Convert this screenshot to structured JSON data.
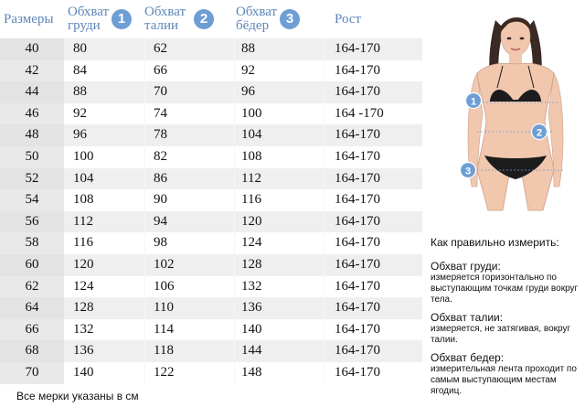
{
  "header": {
    "sizes": "Размеры",
    "chest": [
      "Обхват",
      "груди"
    ],
    "waist": [
      "Обхват",
      "талии"
    ],
    "hips": [
      "Обхват",
      "бёдер"
    ],
    "height": "Рост",
    "markers": [
      "1",
      "2",
      "3"
    ]
  },
  "rows": [
    {
      "size": "40",
      "chest": "80",
      "waist": "62",
      "hips": "88",
      "height": "164-170"
    },
    {
      "size": "42",
      "chest": "84",
      "waist": "66",
      "hips": "92",
      "height": "164-170"
    },
    {
      "size": "44",
      "chest": "88",
      "waist": "70",
      "hips": "96",
      "height": "164-170"
    },
    {
      "size": "46",
      "chest": "92",
      "waist": "74",
      "hips": "100",
      "height": "164 -170"
    },
    {
      "size": "48",
      "chest": "96",
      "waist": "78",
      "hips": "104",
      "height": "164-170"
    },
    {
      "size": "50",
      "chest": "100",
      "waist": "82",
      "hips": "108",
      "height": "164-170"
    },
    {
      "size": "52",
      "chest": "104",
      "waist": "86",
      "hips": "112",
      "height": "164-170"
    },
    {
      "size": "54",
      "chest": "108",
      "waist": "90",
      "hips": "116",
      "height": "164-170"
    },
    {
      "size": "56",
      "chest": "112",
      "waist": "94",
      "hips": "120",
      "height": "164-170"
    },
    {
      "size": "58",
      "chest": "116",
      "waist": "98",
      "hips": "124",
      "height": "164-170"
    },
    {
      "size": "60",
      "chest": "120",
      "waist": "102",
      "hips": "128",
      "height": "164-170"
    },
    {
      "size": "62",
      "chest": "124",
      "waist": "106",
      "hips": "132",
      "height": "164-170"
    },
    {
      "size": "64",
      "chest": "128",
      "waist": "110",
      "hips": "136",
      "height": "164-170"
    },
    {
      "size": "66",
      "chest": "132",
      "waist": "114",
      "hips": "140",
      "height": "164-170"
    },
    {
      "size": "68",
      "chest": "136",
      "waist": "118",
      "hips": "144",
      "height": "164-170"
    },
    {
      "size": "70",
      "chest": "140",
      "waist": "122",
      "hips": "148",
      "height": "164-170"
    }
  ],
  "footnote": "Все мерки указаны в см",
  "instructions": {
    "heading": "Как правильно измерить:",
    "chest_title": "Обхват груди:",
    "chest_desc": "измеряется горизонтально по выступающим точкам груди вокруг тела.",
    "waist_title": "Обхват талии:",
    "waist_desc": "измеряется, не затягивая, вокруг талии.",
    "hips_title": "Обхват бедер:",
    "hips_desc": "измерительная лента проходит по самым выступающим местам ягодиц."
  },
  "figure_markers": [
    "1",
    "2",
    "3"
  ],
  "colors": {
    "header_text": "#5b86b8",
    "marker_fill": "#6d9ed4",
    "stripe": "#efefef"
  }
}
